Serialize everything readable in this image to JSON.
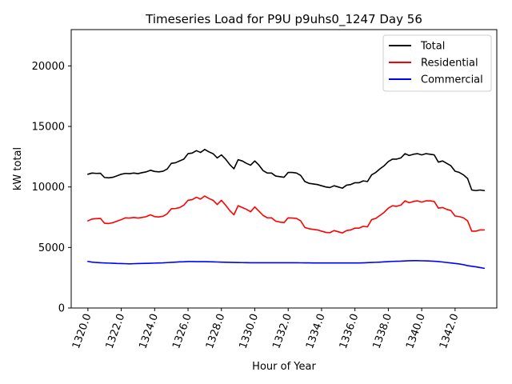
{
  "chart_data": {
    "type": "line",
    "title": "Timeseries Load for P9U p9uhs0_1247  Day 56",
    "xlabel": "Hour of Year",
    "ylabel": "kW total",
    "xlim": [
      1319.0,
      1344.5
    ],
    "ylim": [
      0,
      23000
    ],
    "xticks": [
      1320.0,
      1322.0,
      1324.0,
      1326.0,
      1328.0,
      1330.0,
      1332.0,
      1334.0,
      1336.0,
      1338.0,
      1340.0,
      1342.0
    ],
    "xtick_labels": [
      "1320.0",
      "1322.0",
      "1324.0",
      "1326.0",
      "1328.0",
      "1330.0",
      "1332.0",
      "1334.0",
      "1336.0",
      "1338.0",
      "1340.0",
      "1342.0"
    ],
    "yticks": [
      0,
      5000,
      10000,
      15000,
      20000
    ],
    "ytick_labels": [
      "0",
      "5000",
      "10000",
      "15000",
      "20000"
    ],
    "legend_position": "top-right",
    "x": [
      1320.0,
      1320.25,
      1320.5,
      1320.75,
      1321.0,
      1321.25,
      1321.5,
      1321.75,
      1322.0,
      1322.25,
      1322.5,
      1322.75,
      1323.0,
      1323.25,
      1323.5,
      1323.75,
      1324.0,
      1324.25,
      1324.5,
      1324.75,
      1325.0,
      1325.25,
      1325.5,
      1325.75,
      1326.0,
      1326.25,
      1326.5,
      1326.75,
      1327.0,
      1327.25,
      1327.5,
      1327.75,
      1328.0,
      1328.25,
      1328.5,
      1328.75,
      1329.0,
      1329.25,
      1329.5,
      1329.75,
      1330.0,
      1330.25,
      1330.5,
      1330.75,
      1331.0,
      1331.25,
      1331.5,
      1331.75,
      1332.0,
      1332.25,
      1332.5,
      1332.75,
      1333.0,
      1333.25,
      1333.5,
      1333.75,
      1334.0,
      1334.25,
      1334.5,
      1334.75,
      1335.0,
      1335.25,
      1335.5,
      1335.75,
      1336.0,
      1336.25,
      1336.5,
      1336.75,
      1337.0,
      1337.25,
      1337.5,
      1337.75,
      1338.0,
      1338.25,
      1338.5,
      1338.75,
      1339.0,
      1339.25,
      1339.5,
      1339.75,
      1340.0,
      1340.25,
      1340.5,
      1340.75,
      1341.0,
      1341.25,
      1341.5,
      1341.75,
      1342.0,
      1342.25,
      1342.5,
      1342.75,
      1343.0,
      1343.25,
      1343.5,
      1343.75
    ],
    "series": [
      {
        "name": "Total",
        "color": "#000000",
        "values": [
          11050,
          11150,
          11120,
          11130,
          10780,
          10750,
          10800,
          10920,
          11050,
          11120,
          11100,
          11150,
          11100,
          11180,
          11250,
          11380,
          11280,
          11250,
          11300,
          11480,
          11950,
          12000,
          12150,
          12300,
          12750,
          12800,
          13000,
          12850,
          13100,
          12900,
          12750,
          12400,
          12650,
          12300,
          11850,
          11500,
          12250,
          12150,
          11950,
          11800,
          12150,
          11800,
          11350,
          11150,
          11150,
          10900,
          10850,
          10800,
          11200,
          11200,
          11150,
          10950,
          10450,
          10300,
          10250,
          10200,
          10100,
          10000,
          9950,
          10100,
          10000,
          9900,
          10150,
          10200,
          10350,
          10350,
          10500,
          10450,
          11000,
          11200,
          11500,
          11750,
          12100,
          12300,
          12300,
          12400,
          12750,
          12600,
          12700,
          12750,
          12650,
          12750,
          12700,
          12650,
          12050,
          12150,
          11950,
          11750,
          11300,
          11200,
          11000,
          10700,
          9750,
          9700,
          9750,
          9700
        ]
      },
      {
        "name": "Residential",
        "color": "#ff0000",
        "values": [
          7200,
          7350,
          7380,
          7400,
          7000,
          6980,
          7050,
          7180,
          7300,
          7450,
          7430,
          7480,
          7430,
          7480,
          7550,
          7700,
          7550,
          7520,
          7580,
          7780,
          8200,
          8220,
          8300,
          8500,
          8900,
          8950,
          9150,
          9000,
          9250,
          9050,
          8900,
          8550,
          8900,
          8500,
          8050,
          7700,
          8450,
          8300,
          8150,
          7950,
          8350,
          8000,
          7650,
          7450,
          7450,
          7180,
          7100,
          7050,
          7450,
          7430,
          7400,
          7200,
          6650,
          6550,
          6500,
          6450,
          6350,
          6250,
          6220,
          6400,
          6300,
          6200,
          6400,
          6450,
          6600,
          6600,
          6750,
          6700,
          7300,
          7400,
          7650,
          7900,
          8250,
          8450,
          8400,
          8500,
          8850,
          8700,
          8800,
          8850,
          8750,
          8850,
          8850,
          8800,
          8250,
          8300,
          8150,
          8050,
          7600,
          7550,
          7450,
          7200,
          6350,
          6350,
          6450,
          6450
        ]
      },
      {
        "name": "Commercial",
        "color": "#0000ff",
        "values": [
          3850,
          3790,
          3760,
          3740,
          3720,
          3710,
          3700,
          3680,
          3670,
          3660,
          3650,
          3660,
          3670,
          3680,
          3690,
          3700,
          3710,
          3720,
          3730,
          3750,
          3770,
          3790,
          3810,
          3820,
          3840,
          3840,
          3830,
          3830,
          3830,
          3820,
          3810,
          3800,
          3790,
          3780,
          3770,
          3760,
          3755,
          3750,
          3745,
          3740,
          3740,
          3740,
          3740,
          3740,
          3740,
          3740,
          3740,
          3740,
          3740,
          3740,
          3740,
          3735,
          3730,
          3728,
          3725,
          3722,
          3720,
          3720,
          3720,
          3720,
          3720,
          3720,
          3720,
          3720,
          3720,
          3720,
          3730,
          3745,
          3760,
          3775,
          3790,
          3810,
          3830,
          3850,
          3860,
          3870,
          3890,
          3905,
          3910,
          3910,
          3900,
          3895,
          3880,
          3860,
          3840,
          3800,
          3760,
          3720,
          3680,
          3640,
          3580,
          3500,
          3450,
          3400,
          3340,
          3280
        ]
      }
    ]
  }
}
